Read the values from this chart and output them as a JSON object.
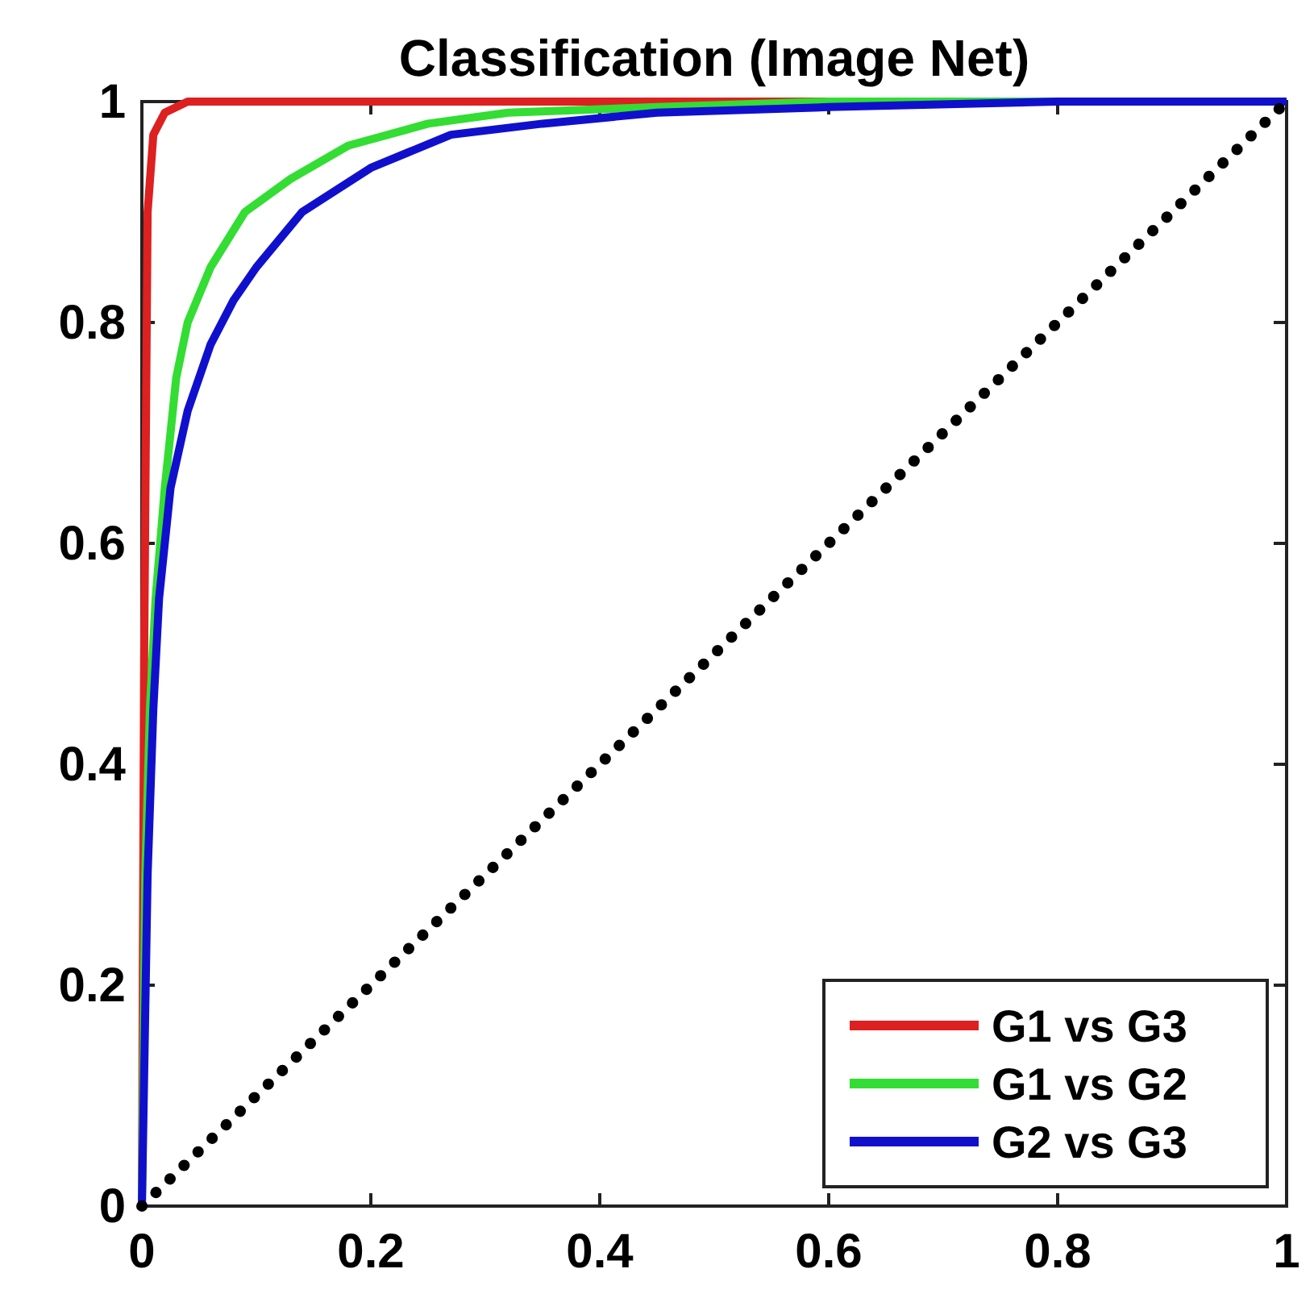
{
  "chart_data": {
    "type": "line",
    "title": "Classification (Image Net)",
    "xlim": [
      0,
      1
    ],
    "ylim": [
      0,
      1
    ],
    "xticks": [
      0,
      0.2,
      0.4,
      0.6,
      0.8,
      1
    ],
    "yticks": [
      0,
      0.2,
      0.4,
      0.6,
      0.8,
      1
    ],
    "grid": false,
    "legend": "bottom right",
    "line_style": "solid",
    "series": [
      {
        "name": "G1 vs G3",
        "color": "#dd2020",
        "x": [
          0,
          0.002,
          0.005,
          0.01,
          0.02,
          0.04,
          0.2,
          0.5,
          1
        ],
        "values": [
          0,
          0.5,
          0.9,
          0.97,
          0.99,
          1,
          1,
          1,
          1
        ]
      },
      {
        "name": "G1 vs G2",
        "color": "#33dd33",
        "x": [
          0,
          0.003,
          0.007,
          0.012,
          0.02,
          0.03,
          0.04,
          0.06,
          0.09,
          0.13,
          0.18,
          0.25,
          0.32,
          0.45,
          0.6,
          1
        ],
        "values": [
          0,
          0.3,
          0.45,
          0.55,
          0.65,
          0.75,
          0.8,
          0.85,
          0.9,
          0.93,
          0.96,
          0.98,
          0.99,
          0.995,
          1,
          1
        ]
      },
      {
        "name": "G2 vs G3",
        "color": "#1010cc",
        "x": [
          0,
          0.005,
          0.01,
          0.015,
          0.025,
          0.04,
          0.06,
          0.08,
          0.1,
          0.14,
          0.2,
          0.27,
          0.35,
          0.45,
          0.6,
          0.8,
          1
        ],
        "values": [
          0,
          0.3,
          0.45,
          0.55,
          0.65,
          0.72,
          0.78,
          0.82,
          0.85,
          0.9,
          0.94,
          0.97,
          0.98,
          0.99,
          0.995,
          1,
          1
        ]
      },
      {
        "color": "#000000",
        "line_style": "dotted",
        "x": [
          0,
          1
        ],
        "values": [
          0,
          1
        ]
      }
    ]
  }
}
